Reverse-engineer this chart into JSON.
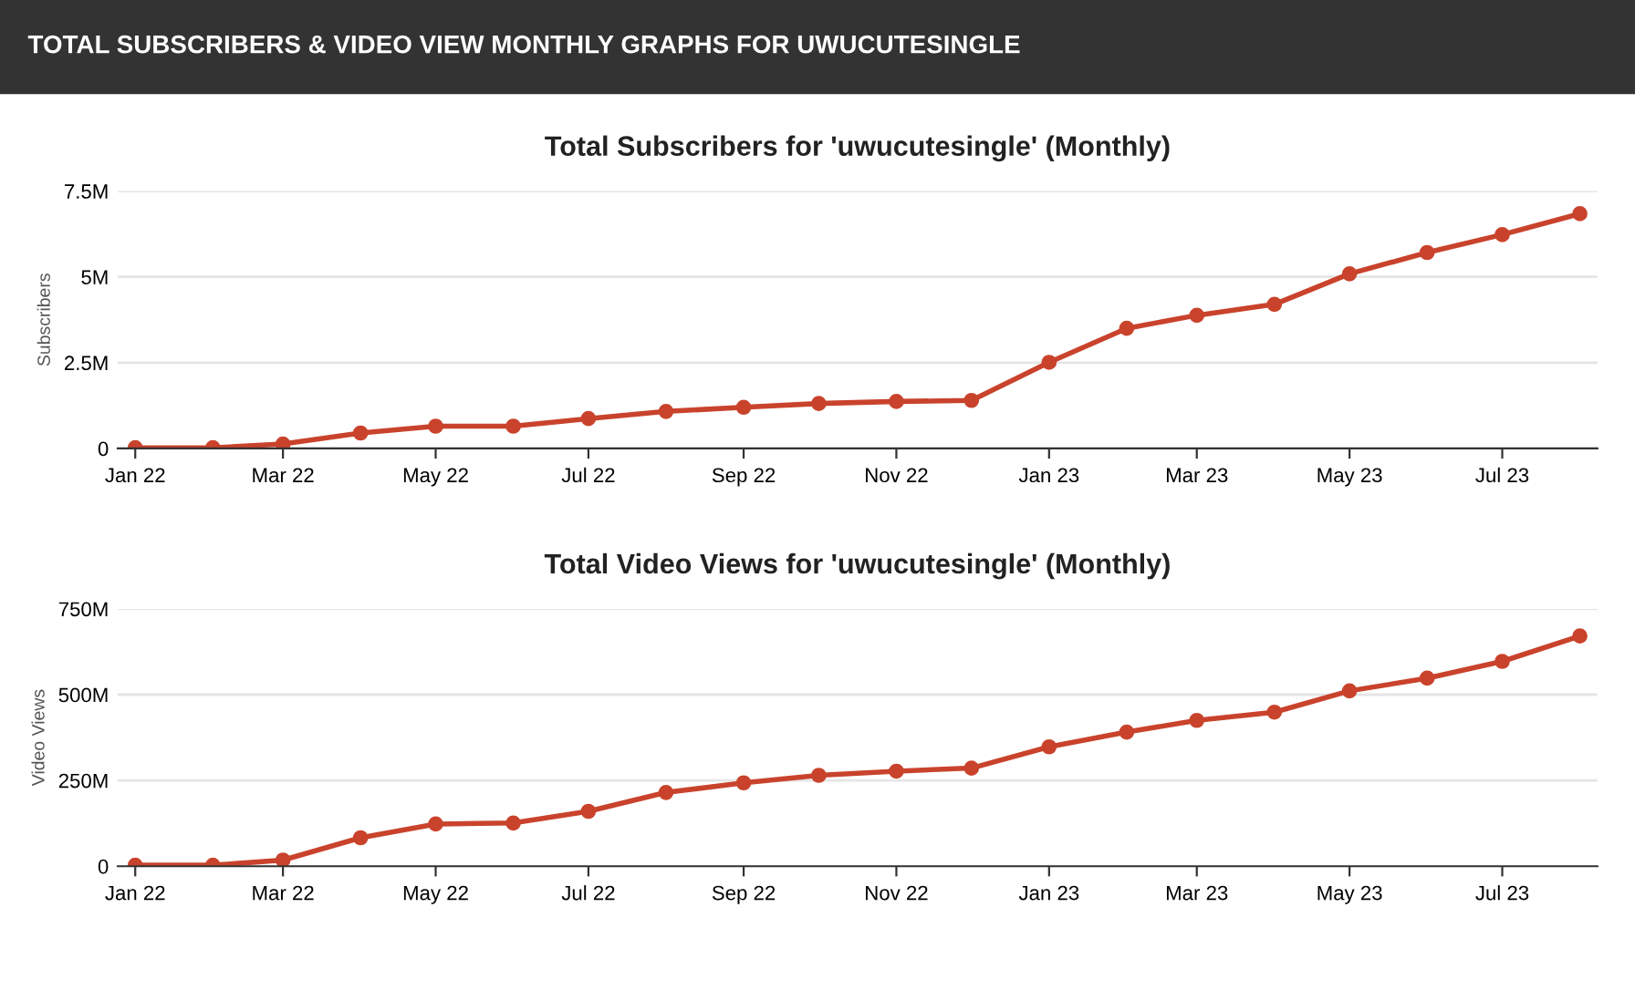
{
  "chart_data": [
    {
      "type": "line",
      "title": "Total Subscribers for 'uwucutesingle' (Monthly)",
      "ylabel": "Subscribers",
      "annotations": [
        "TOTAL SUBSCRIBERS & VIDEO VIEW MONTHLY GRAPHS FOR UWUCUTESINGLE"
      ],
      "x": [
        "2022-01",
        "2022-02",
        "2022-03",
        "2022-04",
        "2022-05",
        "2022-06",
        "2022-07",
        "2022-08",
        "2022-09",
        "2022-10",
        "2022-11",
        "2022-12",
        "2023-01",
        "2023-02",
        "2023-03",
        "2023-04",
        "2023-05",
        "2023-06",
        "2023-07",
        "2023-08"
      ],
      "series": [
        {
          "color": "#c9432c",
          "values": [
            20000,
            20000,
            130000,
            450000,
            650000,
            650000,
            870000,
            1080000,
            1200000,
            1310000,
            1370000,
            1400000,
            2510000,
            3500000,
            3880000,
            4200000,
            5090000,
            5710000,
            6230000,
            6840000
          ]
        }
      ],
      "xlim": [
        "2021-12-25",
        "2023-08-08"
      ],
      "xticks": [
        {
          "value": "2022-01",
          "label": "Jan 22"
        },
        {
          "value": "2022-03",
          "label": "Mar 22"
        },
        {
          "value": "2022-05",
          "label": "May 22"
        },
        {
          "value": "2022-07",
          "label": "Jul 22"
        },
        {
          "value": "2022-09",
          "label": "Sep 22"
        },
        {
          "value": "2022-11",
          "label": "Nov 22"
        },
        {
          "value": "2023-01",
          "label": "Jan 23"
        },
        {
          "value": "2023-03",
          "label": "Mar 23"
        },
        {
          "value": "2023-05",
          "label": "May 23"
        },
        {
          "value": "2023-07",
          "label": "Jul 23"
        }
      ],
      "ylim": [
        0,
        7500000
      ],
      "yticks": [
        0,
        {
          "value": 2500000,
          "label": "2.5M"
        },
        {
          "value": 5000000,
          "label": "5M"
        },
        {
          "value": 7500000,
          "label": "7.5M"
        }
      ],
      "grid": "y",
      "marker": "circle",
      "line_style": "solid",
      "legend": false
    },
    {
      "type": "line",
      "title": "Total Video Views for 'uwucutesingle' (Monthly)",
      "ylabel": "Video Views",
      "x": [
        "2022-01",
        "2022-02",
        "2022-03",
        "2022-04",
        "2022-05",
        "2022-06",
        "2022-07",
        "2022-08",
        "2022-09",
        "2022-10",
        "2022-11",
        "2022-12",
        "2023-01",
        "2023-02",
        "2023-03",
        "2023-04",
        "2023-05",
        "2023-06",
        "2023-07",
        "2023-08"
      ],
      "series": [
        {
          "color": "#c9432c",
          "values": [
            3000000,
            3000000,
            18000000,
            83000000,
            123000000,
            126000000,
            160000000,
            215000000,
            243000000,
            265000000,
            277000000,
            286000000,
            348000000,
            391000000,
            425000000,
            449000000,
            511000000,
            548000000,
            597000000,
            671000000
          ]
        }
      ],
      "xlim": [
        "2021-12-25",
        "2023-08-08"
      ],
      "xticks": [
        {
          "value": "2022-01",
          "label": "Jan 22"
        },
        {
          "value": "2022-03",
          "label": "Mar 22"
        },
        {
          "value": "2022-05",
          "label": "May 22"
        },
        {
          "value": "2022-07",
          "label": "Jul 22"
        },
        {
          "value": "2022-09",
          "label": "Sep 22"
        },
        {
          "value": "2022-11",
          "label": "Nov 22"
        },
        {
          "value": "2023-01",
          "label": "Jan 23"
        },
        {
          "value": "2023-03",
          "label": "Mar 23"
        },
        {
          "value": "2023-05",
          "label": "May 23"
        },
        {
          "value": "2023-07",
          "label": "Jul 23"
        }
      ],
      "ylim": [
        0,
        750000000
      ],
      "yticks": [
        0,
        {
          "value": 250000000,
          "label": "250M"
        },
        {
          "value": 500000000,
          "label": "500M"
        },
        {
          "value": 750000000,
          "label": "750M"
        }
      ],
      "grid": "y",
      "marker": "circle",
      "line_style": "solid",
      "legend": false
    }
  ]
}
